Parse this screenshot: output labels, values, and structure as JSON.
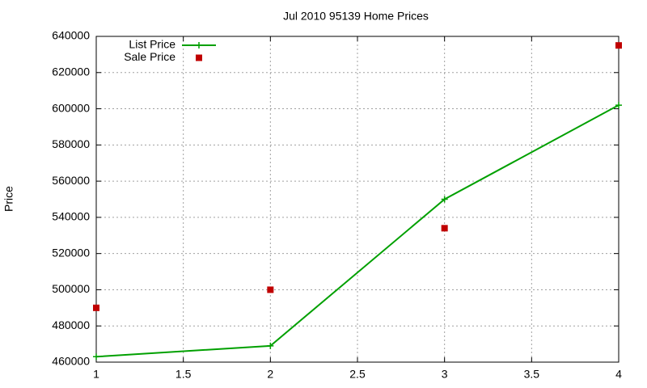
{
  "chart_data": {
    "type": "line",
    "title": "Jul 2010 95139 Home Prices",
    "y_label": "Price",
    "x": [
      1,
      2,
      3,
      4
    ],
    "series": [
      {
        "name": "List Price",
        "color": "#00a000",
        "style": "linespoints",
        "values": [
          463000,
          469000,
          550000,
          602000
        ]
      },
      {
        "name": "Sale Price",
        "color": "#c00000",
        "style": "points",
        "values": [
          490000,
          500000,
          534000,
          635000
        ]
      }
    ],
    "xlim": [
      1,
      4
    ],
    "xticks": [
      1,
      1.5,
      2,
      2.5,
      3,
      3.5,
      4
    ],
    "ylim": [
      460000,
      640000
    ],
    "yticks": [
      460000,
      480000,
      500000,
      520000,
      540000,
      560000,
      580000,
      600000,
      620000,
      640000
    ],
    "grid": true,
    "legend": "top-left"
  }
}
